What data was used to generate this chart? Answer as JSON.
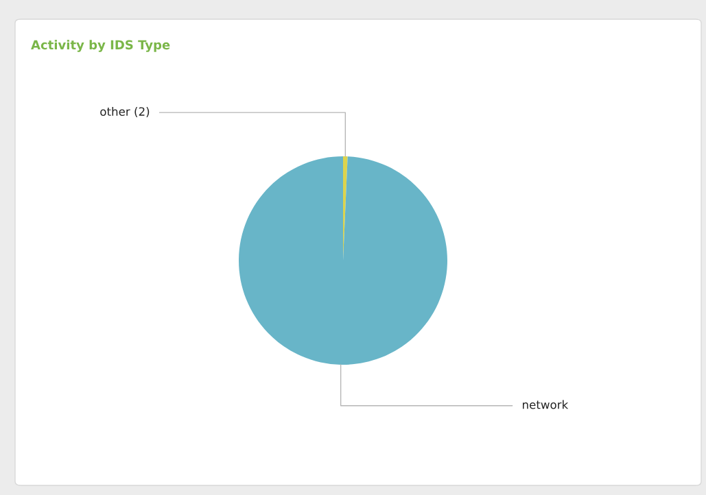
{
  "chart_data": {
    "type": "pie",
    "title": "Activity by IDS Type",
    "categories": [
      "other (2)",
      "network"
    ],
    "values": [
      0.7,
      99.3
    ],
    "colors": [
      "#ddd44c",
      "#68b5c8"
    ]
  }
}
